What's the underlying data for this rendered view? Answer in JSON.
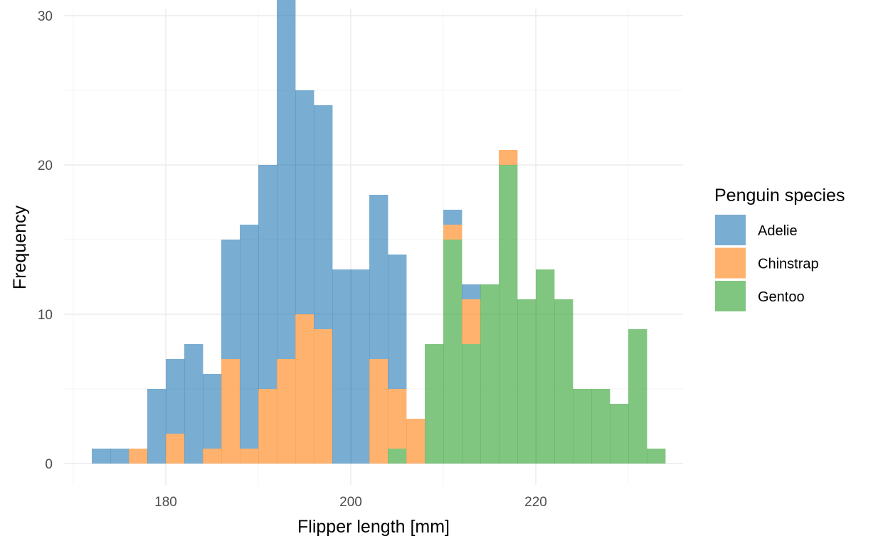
{
  "chart_data": {
    "type": "histogram",
    "stacked": true,
    "xlabel": "Flipper length [mm]",
    "ylabel": "Frequency",
    "xlim": [
      170,
      233
    ],
    "ylim": [
      0,
      30
    ],
    "x_ticks": [
      180,
      200,
      220
    ],
    "y_ticks": [
      0,
      10,
      20,
      30
    ],
    "grid": true,
    "legend": {
      "title": "Penguin species",
      "placement": "right"
    },
    "bin_start": 172,
    "bin_width": 2.0,
    "series": [
      {
        "name": "Adelie",
        "color": "#1F77B4",
        "values": [
          1,
          1,
          0,
          5,
          5,
          8,
          5,
          8,
          15,
          15,
          25,
          15,
          15,
          13,
          13,
          11,
          9,
          0,
          0,
          1,
          1,
          0,
          0,
          0,
          0,
          0,
          0,
          0,
          0,
          0,
          0,
          0,
          0,
          0,
          0,
          0,
          0,
          0,
          0,
          0
        ]
      },
      {
        "name": "Chinstrap",
        "color": "#FF7F0E",
        "values": [
          0,
          0,
          1,
          0,
          2,
          0,
          1,
          7,
          1,
          5,
          7,
          10,
          9,
          0,
          0,
          7,
          4,
          3,
          0,
          1,
          3,
          0,
          1,
          0,
          0,
          0,
          0,
          0,
          0,
          0,
          0,
          0,
          0,
          0,
          0,
          0,
          0,
          0,
          0,
          0
        ]
      },
      {
        "name": "Gentoo",
        "color": "#2CA02C",
        "values": [
          0,
          0,
          0,
          0,
          0,
          0,
          0,
          0,
          0,
          0,
          0,
          0,
          0,
          0,
          0,
          0,
          1,
          0,
          8,
          15,
          8,
          12,
          20,
          11,
          13,
          11,
          5,
          5,
          4,
          9,
          1,
          0,
          0,
          0,
          0,
          0,
          0,
          0,
          0,
          0
        ]
      }
    ]
  }
}
